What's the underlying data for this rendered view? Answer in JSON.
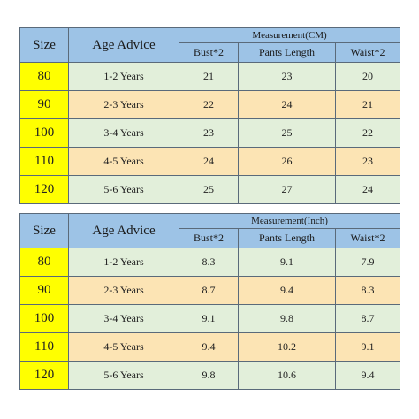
{
  "cm_table": {
    "size_header": "Size",
    "age_header": "Age Advice",
    "measurement_header": "Measurement(CM)",
    "columns": [
      "Bust*2",
      "Pants Length",
      "Waist*2"
    ],
    "rows": [
      {
        "size": "80",
        "age": "1-2 Years",
        "bust": "21",
        "pants": "23",
        "waist": "20"
      },
      {
        "size": "90",
        "age": "2-3 Years",
        "bust": "22",
        "pants": "24",
        "waist": "21"
      },
      {
        "size": "100",
        "age": "3-4 Years",
        "bust": "23",
        "pants": "25",
        "waist": "22"
      },
      {
        "size": "110",
        "age": "4-5 Years",
        "bust": "24",
        "pants": "26",
        "waist": "23"
      },
      {
        "size": "120",
        "age": "5-6 Years",
        "bust": "25",
        "pants": "27",
        "waist": "24"
      }
    ]
  },
  "inch_table": {
    "size_header": "Size",
    "age_header": "Age Advice",
    "measurement_header": "Measurement(Inch)",
    "columns": [
      "Bust*2",
      "Pants Length",
      "Waist*2"
    ],
    "rows": [
      {
        "size": "80",
        "age": "1-2 Years",
        "bust": "8.3",
        "pants": "9.1",
        "waist": "7.9"
      },
      {
        "size": "90",
        "age": "2-3 Years",
        "bust": "8.7",
        "pants": "9.4",
        "waist": "8.3"
      },
      {
        "size": "100",
        "age": "3-4 Years",
        "bust": "9.1",
        "pants": "9.8",
        "waist": "8.7"
      },
      {
        "size": "110",
        "age": "4-5 Years",
        "bust": "9.4",
        "pants": "10.2",
        "waist": "9.1"
      },
      {
        "size": "120",
        "age": "5-6 Years",
        "bust": "9.8",
        "pants": "10.6",
        "waist": "9.4"
      }
    ]
  },
  "colors": {
    "header_blue": "#9dc3e6",
    "size_yellow": "#ffff00",
    "row_green": "#e2efda",
    "row_orange": "#fce4b4"
  }
}
